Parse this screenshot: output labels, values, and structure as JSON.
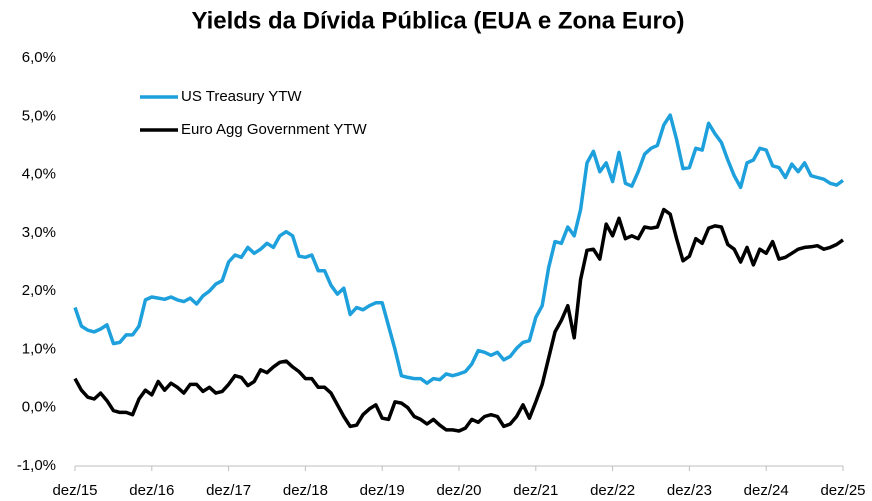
{
  "chart_data": {
    "type": "line",
    "title": "Yields da Dívida Pública (EUA e Zona Euro)",
    "categories": [
      "dez/15",
      null,
      null,
      null,
      null,
      null,
      null,
      null,
      null,
      null,
      null,
      null,
      "dez/16",
      null,
      null,
      null,
      null,
      null,
      null,
      null,
      null,
      null,
      null,
      null,
      "dez/17",
      null,
      null,
      null,
      null,
      null,
      null,
      null,
      null,
      null,
      null,
      null,
      "dez/18",
      null,
      null,
      null,
      null,
      null,
      null,
      null,
      null,
      null,
      null,
      null,
      "dez/19",
      null,
      null,
      null,
      null,
      null,
      null,
      null,
      null,
      null,
      null,
      null,
      "dez/20",
      null,
      null,
      null,
      null,
      null,
      null,
      null,
      null,
      null,
      null,
      null,
      "dez/21",
      null,
      null,
      null,
      null,
      null,
      null,
      null,
      null,
      null,
      null,
      null,
      "dez/22",
      null,
      null,
      null,
      null,
      null,
      null,
      null,
      null,
      null,
      null,
      null,
      "dez/23",
      null,
      null,
      null,
      null,
      null,
      null,
      null,
      null,
      null,
      null,
      null,
      "dez/24",
      null,
      null,
      null,
      null,
      null,
      null,
      null,
      null,
      null,
      null,
      null,
      "dez/25"
    ],
    "series": [
      {
        "name": "US Treasury YTW",
        "color": "#1ea0dc",
        "values": [
          1.72,
          1.4,
          1.33,
          1.3,
          1.35,
          1.42,
          1.1,
          1.12,
          1.25,
          1.25,
          1.4,
          1.85,
          1.9,
          1.88,
          1.86,
          1.9,
          1.85,
          1.82,
          1.88,
          1.78,
          1.92,
          2.0,
          2.12,
          2.18,
          2.5,
          2.62,
          2.58,
          2.75,
          2.65,
          2.72,
          2.82,
          2.75,
          2.95,
          3.02,
          2.95,
          2.6,
          2.58,
          2.62,
          2.35,
          2.35,
          2.1,
          1.95,
          2.05,
          1.6,
          1.72,
          1.68,
          1.75,
          1.8,
          1.8,
          1.4,
          1.0,
          0.55,
          0.52,
          0.5,
          0.5,
          0.42,
          0.5,
          0.48,
          0.58,
          0.55,
          0.58,
          0.62,
          0.75,
          0.98,
          0.95,
          0.9,
          0.95,
          0.82,
          0.88,
          1.02,
          1.12,
          1.15,
          1.55,
          1.75,
          2.4,
          2.85,
          2.82,
          3.1,
          2.95,
          3.4,
          4.2,
          4.4,
          4.05,
          4.2,
          3.88,
          4.38,
          3.85,
          3.8,
          4.05,
          4.35,
          4.45,
          4.5,
          4.85,
          5.02,
          4.6,
          4.1,
          4.12,
          4.45,
          4.42,
          4.88,
          4.7,
          4.55,
          4.25,
          3.98,
          3.78,
          4.2,
          4.25,
          4.45,
          4.42,
          4.15,
          4.12,
          3.95,
          4.18,
          4.05,
          4.2,
          3.98,
          3.95,
          3.92,
          3.85,
          3.82,
          3.9
        ]
      },
      {
        "name": "Euro Agg Government YTW",
        "color": "#000000",
        "values": [
          0.5,
          0.3,
          0.18,
          0.15,
          0.25,
          0.12,
          -0.05,
          -0.08,
          -0.08,
          -0.12,
          0.15,
          0.3,
          0.22,
          0.45,
          0.3,
          0.42,
          0.35,
          0.25,
          0.4,
          0.4,
          0.28,
          0.35,
          0.25,
          0.28,
          0.4,
          0.55,
          0.52,
          0.38,
          0.45,
          0.65,
          0.6,
          0.7,
          0.78,
          0.8,
          0.7,
          0.62,
          0.5,
          0.5,
          0.35,
          0.35,
          0.25,
          0.05,
          -0.15,
          -0.32,
          -0.3,
          -0.12,
          -0.02,
          0.05,
          -0.18,
          -0.2,
          0.1,
          0.08,
          0.0,
          -0.15,
          -0.2,
          -0.28,
          -0.2,
          -0.3,
          -0.38,
          -0.38,
          -0.4,
          -0.35,
          -0.2,
          -0.25,
          -0.15,
          -0.12,
          -0.15,
          -0.32,
          -0.28,
          -0.15,
          0.05,
          -0.18,
          0.1,
          0.4,
          0.85,
          1.3,
          1.5,
          1.75,
          1.2,
          2.2,
          2.7,
          2.72,
          2.55,
          3.15,
          2.95,
          3.25,
          2.9,
          2.95,
          2.9,
          3.1,
          3.08,
          3.1,
          3.4,
          3.32,
          2.9,
          2.52,
          2.6,
          2.9,
          2.82,
          3.08,
          3.12,
          3.1,
          2.8,
          2.72,
          2.5,
          2.75,
          2.45,
          2.72,
          2.65,
          2.85,
          2.55,
          2.58,
          2.65,
          2.72,
          2.75,
          2.76,
          2.78,
          2.72,
          2.75,
          2.8,
          2.88
        ]
      }
    ],
    "ylim": [
      -1,
      6
    ],
    "yticks": [
      {
        "value": -1,
        "label": "-1,0%"
      },
      {
        "value": 0,
        "label": "0,0%"
      },
      {
        "value": 1,
        "label": "1,0%"
      },
      {
        "value": 2,
        "label": "2,0%"
      },
      {
        "value": 3,
        "label": "3,0%"
      },
      {
        "value": 4,
        "label": "4,0%"
      },
      {
        "value": 5,
        "label": "5,0%"
      },
      {
        "value": 6,
        "label": "6,0%"
      }
    ],
    "legend": "upper left"
  }
}
